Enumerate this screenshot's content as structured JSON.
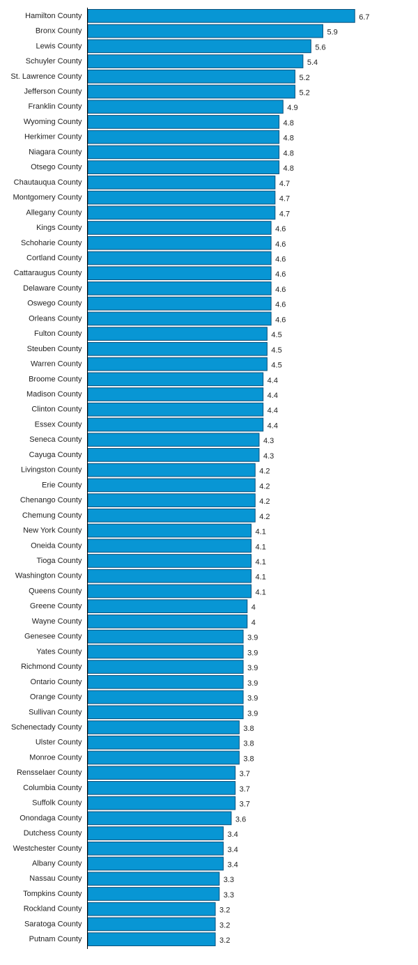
{
  "chart_data": {
    "type": "bar",
    "orientation": "horizontal",
    "title": "",
    "xlabel": "",
    "ylabel": "",
    "grid": false,
    "legend": "none",
    "bar_color": "#0896d4",
    "bar_stroke": "#0b4f7a",
    "axis_color": "#000000",
    "categories": [
      "Hamilton County",
      "Bronx County",
      "Lewis County",
      "Schuyler County",
      "St. Lawrence County",
      "Jefferson County",
      "Franklin County",
      "Wyoming County",
      "Herkimer County",
      "Niagara County",
      "Otsego County",
      "Chautauqua County",
      "Montgomery County",
      "Allegany County",
      "Kings County",
      "Schoharie County",
      "Cortland County",
      "Cattaraugus County",
      "Delaware County",
      "Oswego County",
      "Orleans County",
      "Fulton County",
      "Steuben County",
      "Warren County",
      "Broome County",
      "Madison County",
      "Clinton County",
      "Essex County",
      "Seneca County",
      "Cayuga County",
      "Livingston County",
      "Erie County",
      "Chenango County",
      "Chemung County",
      "New York County",
      "Oneida County",
      "Tioga County",
      "Washington County",
      "Queens County",
      "Greene County",
      "Wayne County",
      "Genesee County",
      "Yates County",
      "Richmond County",
      "Ontario County",
      "Orange County",
      "Sullivan County",
      "Schenectady County",
      "Ulster County",
      "Monroe County",
      "Rensselaer County",
      "Columbia County",
      "Suffolk County",
      "Onondaga County",
      "Dutchess County",
      "Westchester County",
      "Albany County",
      "Nassau County",
      "Tompkins County",
      "Rockland County",
      "Saratoga County",
      "Putnam County"
    ],
    "values": [
      6.7,
      5.9,
      5.6,
      5.4,
      5.2,
      5.2,
      4.9,
      4.8,
      4.8,
      4.8,
      4.8,
      4.7,
      4.7,
      4.7,
      4.6,
      4.6,
      4.6,
      4.6,
      4.6,
      4.6,
      4.6,
      4.5,
      4.5,
      4.5,
      4.4,
      4.4,
      4.4,
      4.4,
      4.3,
      4.3,
      4.2,
      4.2,
      4.2,
      4.2,
      4.1,
      4.1,
      4.1,
      4.1,
      4.1,
      4,
      4,
      3.9,
      3.9,
      3.9,
      3.9,
      3.9,
      3.9,
      3.8,
      3.8,
      3.8,
      3.7,
      3.7,
      3.7,
      3.6,
      3.4,
      3.4,
      3.4,
      3.3,
      3.3,
      3.2,
      3.2,
      3.2
    ],
    "value_labels": [
      "6.7",
      "5.9",
      "5.6",
      "5.4",
      "5.2",
      "5.2",
      "4.9",
      "4.8",
      "4.8",
      "4.8",
      "4.8",
      "4.7",
      "4.7",
      "4.7",
      "4.6",
      "4.6",
      "4.6",
      "4.6",
      "4.6",
      "4.6",
      "4.6",
      "4.5",
      "4.5",
      "4.5",
      "4.4",
      "4.4",
      "4.4",
      "4.4",
      "4.3",
      "4.3",
      "4.2",
      "4.2",
      "4.2",
      "4.2",
      "4.1",
      "4.1",
      "4.1",
      "4.1",
      "4.1",
      "4",
      "4",
      "3.9",
      "3.9",
      "3.9",
      "3.9",
      "3.9",
      "3.9",
      "3.8",
      "3.8",
      "3.8",
      "3.7",
      "3.7",
      "3.7",
      "3.6",
      "3.4",
      "3.4",
      "3.4",
      "3.3",
      "3.3",
      "3.2",
      "3.2",
      "3.2"
    ]
  }
}
